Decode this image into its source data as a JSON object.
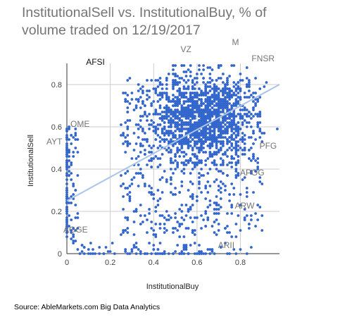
{
  "chart_data": {
    "type": "scatter",
    "title_lines": [
      "InstitutionalSell vs. InstitutionalBuy, % of",
      "volume traded on 12/19/2017"
    ],
    "xlabel": "InstitutionalBuy",
    "ylabel": "InstitutionalSell",
    "xlim": [
      0,
      0.98
    ],
    "ylim": [
      0,
      0.9
    ],
    "x_ticks": [
      "0",
      "0.2",
      "0.4",
      "0.6",
      "0.8"
    ],
    "x_tick_values": [
      0,
      0.2,
      0.4,
      0.6,
      0.8
    ],
    "y_ticks": [
      "0",
      "0.2",
      "0.4",
      "0.6",
      "0.8"
    ],
    "y_tick_values": [
      0,
      0.2,
      0.4,
      0.6,
      0.8
    ],
    "grid": true,
    "point_color": "#3366cc",
    "trendline_color": "#a9c4ea",
    "trendline": {
      "x": [
        0,
        0.98
      ],
      "y": [
        0.25,
        0.8
      ]
    },
    "approx_point_count": 2200,
    "annotations": [
      {
        "label": "AFSI",
        "x": 0.15,
        "y": 0.88,
        "dark": true
      },
      {
        "label": "VZ",
        "x": 0.55,
        "y": 0.91
      },
      {
        "label": "M",
        "x": 0.79,
        "y": 0.93
      },
      {
        "label": "FNSR",
        "x": 0.91,
        "y": 0.87
      },
      {
        "label": "OME",
        "x": 0.0,
        "y": 0.58
      },
      {
        "label": "AYT",
        "x": 0.0,
        "y": 0.5
      },
      {
        "label": "PFG",
        "x": 0.93,
        "y": 0.51
      },
      {
        "label": "APOG",
        "x": 0.86,
        "y": 0.37
      },
      {
        "label": "ARW",
        "x": 0.81,
        "y": 0.23
      },
      {
        "label": "AGGE",
        "x": 0.0,
        "y": 0.12
      },
      {
        "label": "ARII",
        "x": 0.7,
        "y": 0.03
      }
    ]
  },
  "source": "Source: AbleMarkets.com Big Data Analytics"
}
